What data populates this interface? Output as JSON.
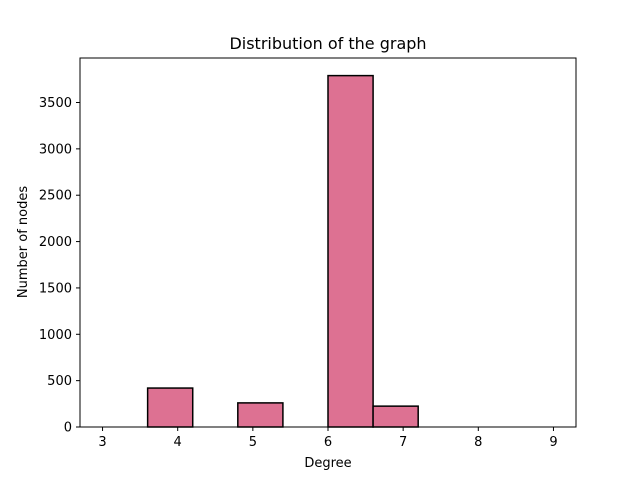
{
  "chart_data": {
    "type": "bar",
    "title": "Distribution of the graph",
    "xlabel": "Degree",
    "ylabel": "Number of nodes",
    "xlim": [
      2.7,
      9.3
    ],
    "ylim": [
      0,
      3980
    ],
    "xticks": [
      3,
      4,
      5,
      6,
      7,
      8,
      9
    ],
    "yticks": [
      0,
      500,
      1000,
      1500,
      2000,
      2500,
      3000,
      3500
    ],
    "bins": [
      {
        "start": 3.0,
        "end": 3.6,
        "count": 0
      },
      {
        "start": 3.6,
        "end": 4.2,
        "count": 420
      },
      {
        "start": 4.2,
        "end": 4.8,
        "count": 0
      },
      {
        "start": 4.8,
        "end": 5.4,
        "count": 260
      },
      {
        "start": 5.4,
        "end": 6.0,
        "count": 0
      },
      {
        "start": 6.0,
        "end": 6.6,
        "count": 3790
      },
      {
        "start": 6.6,
        "end": 7.2,
        "count": 225
      },
      {
        "start": 7.2,
        "end": 7.8,
        "count": 0
      },
      {
        "start": 7.8,
        "end": 8.4,
        "count": 0
      },
      {
        "start": 8.4,
        "end": 9.0,
        "count": 0
      }
    ],
    "bar_color": "#dd7192",
    "edge_color": "#000000",
    "grid": false,
    "legend": "none"
  }
}
